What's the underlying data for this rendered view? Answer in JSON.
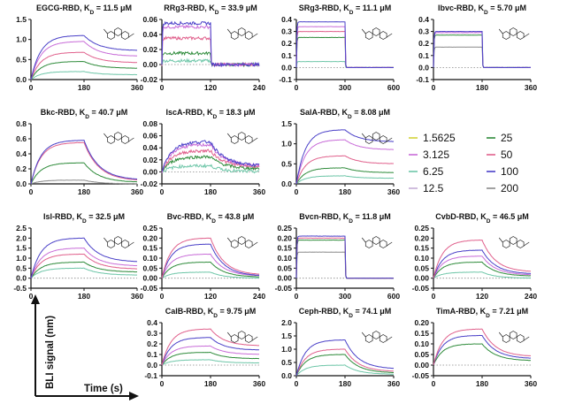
{
  "figure": {
    "y_axis_label": "BLI signal  (nm)",
    "x_axis_label": "Time (s)"
  },
  "legend": {
    "entries": [
      {
        "label": "1.5625",
        "color": "#d4d43a"
      },
      {
        "label": "3.125",
        "color": "#c86cd8"
      },
      {
        "label": "6.25",
        "color": "#6ec6a8"
      },
      {
        "label": "12.5",
        "color": "#c4aed6"
      },
      {
        "label": "25",
        "color": "#2e8b3a"
      },
      {
        "label": "50",
        "color": "#e0608c"
      },
      {
        "label": "100",
        "color": "#4a40c8"
      },
      {
        "label": "200",
        "color": "#8a8a8a"
      }
    ]
  },
  "chart_data": [
    {
      "type": "line",
      "title_main": "EGCG-RBD, K",
      "title_sub": "D",
      "title_rest": " = 11.5 μM",
      "xlim": [
        0,
        360
      ],
      "xticks": [
        "0",
        "180",
        "360"
      ],
      "xtick_values": [
        0,
        180,
        360
      ],
      "ylim": [
        0,
        1.5
      ],
      "yticks": [
        "0.0",
        "0.5",
        "1.0",
        "1.5"
      ],
      "ytick_values": [
        0,
        0.5,
        1.0,
        1.5
      ],
      "assoc_end": 180,
      "x_end": 360,
      "molecule": true,
      "series": [
        {
          "color": "#6ec6a8",
          "peak": 0.2,
          "tail": 0.12
        },
        {
          "color": "#2e8b3a",
          "peak": 0.45,
          "tail": 0.28
        },
        {
          "color": "#e0608c",
          "peak": 0.68,
          "tail": 0.42
        },
        {
          "color": "#c86cd8",
          "peak": 0.95,
          "tail": 0.58
        },
        {
          "color": "#4a40c8",
          "peak": 1.1,
          "tail": 0.72
        }
      ]
    },
    {
      "type": "line",
      "title_main": "RRg3-RBD, K",
      "title_sub": "D",
      "title_rest": " = 33.9 μM",
      "xlim": [
        0,
        240
      ],
      "xticks": [
        "0",
        "120",
        "240"
      ],
      "xtick_values": [
        0,
        120,
        240
      ],
      "ylim": [
        -0.02,
        0.06
      ],
      "yticks": [
        "-0.02",
        "0.00",
        "0.02",
        "0.04",
        "0.06"
      ],
      "ytick_values": [
        -0.02,
        0,
        0.02,
        0.04,
        0.06
      ],
      "assoc_end": 120,
      "x_end": 240,
      "molecule": true,
      "square": true,
      "noisy": true,
      "series": [
        {
          "color": "#6ec6a8",
          "peak": 0.005,
          "tail": 0.0
        },
        {
          "color": "#2e8b3a",
          "peak": 0.015,
          "tail": 0.0
        },
        {
          "color": "#e0608c",
          "peak": 0.035,
          "tail": 0.0
        },
        {
          "color": "#c86cd8",
          "peak": 0.05,
          "tail": 0.0
        },
        {
          "color": "#4a40c8",
          "peak": 0.055,
          "tail": 0.0
        }
      ]
    },
    {
      "type": "line",
      "title_main": "SRg3-RBD, K",
      "title_sub": "D",
      "title_rest": " = 11.1 μM",
      "xlim": [
        0,
        600
      ],
      "xticks": [
        "0",
        "300",
        "600"
      ],
      "xtick_values": [
        0,
        300,
        600
      ],
      "ylim": [
        -0.1,
        0.4
      ],
      "yticks": [
        "-0.1",
        "0.0",
        "0.1",
        "0.2",
        "0.3",
        "0.4"
      ],
      "ytick_values": [
        -0.1,
        0,
        0.1,
        0.2,
        0.3,
        0.4
      ],
      "assoc_end": 300,
      "x_end": 600,
      "molecule": true,
      "square": true,
      "series": [
        {
          "color": "#6ec6a8",
          "peak": 0.05,
          "tail": 0.0
        },
        {
          "color": "#2e8b3a",
          "peak": 0.25,
          "tail": 0.0
        },
        {
          "color": "#e0608c",
          "peak": 0.3,
          "tail": 0.0
        },
        {
          "color": "#c86cd8",
          "peak": 0.34,
          "tail": 0.0
        },
        {
          "color": "#4a40c8",
          "peak": 0.38,
          "tail": 0.0
        }
      ]
    },
    {
      "type": "line",
      "title_main": "Ibvc-RBD, K",
      "title_sub": "D",
      "title_rest": " = 5.70 μM",
      "xlim": [
        0,
        360
      ],
      "xticks": [
        "0",
        "180",
        "360"
      ],
      "xtick_values": [
        0,
        180,
        360
      ],
      "ylim": [
        -0.1,
        0.4
      ],
      "yticks": [
        "-0.1",
        "0.0",
        "0.1",
        "0.2",
        "0.3",
        "0.4"
      ],
      "ytick_values": [
        -0.1,
        0,
        0.1,
        0.2,
        0.3,
        0.4
      ],
      "assoc_end": 180,
      "x_end": 360,
      "molecule": true,
      "square": true,
      "series": [
        {
          "color": "#8a8a8a",
          "peak": 0.17,
          "tail": 0.0
        },
        {
          "color": "#2e8b3a",
          "peak": 0.27,
          "tail": 0.0
        },
        {
          "color": "#c86cd8",
          "peak": 0.29,
          "tail": 0.0
        },
        {
          "color": "#4a40c8",
          "peak": 0.3,
          "tail": 0.0
        }
      ]
    },
    {
      "type": "line",
      "title_main": "Bkc-RBD, K",
      "title_sub": "D",
      "title_rest": " = 40.7 μM",
      "xlim": [
        0,
        360
      ],
      "xticks": [
        "0",
        "180",
        "360"
      ],
      "xtick_values": [
        0,
        180,
        360
      ],
      "ylim": [
        0,
        0.8
      ],
      "yticks": [
        "0.0",
        "0.2",
        "0.4",
        "0.6",
        "0.8"
      ],
      "ytick_values": [
        0,
        0.2,
        0.4,
        0.6,
        0.8
      ],
      "assoc_end": 180,
      "x_end": 360,
      "molecule": true,
      "series": [
        {
          "color": "#8a8a8a",
          "peak": 0.05,
          "tail": 0.0
        },
        {
          "color": "#2e8b3a",
          "peak": 0.28,
          "tail": 0.02
        },
        {
          "color": "#e0608c",
          "peak": 0.55,
          "tail": 0.04
        },
        {
          "color": "#4a40c8",
          "peak": 0.58,
          "tail": 0.05
        }
      ]
    },
    {
      "type": "line",
      "title_main": "IscA-RBD, K",
      "title_sub": "D",
      "title_rest": " = 18.3 μM",
      "xlim": [
        0,
        360
      ],
      "xticks": [
        "0",
        "180",
        "360"
      ],
      "xtick_values": [
        0,
        180,
        360
      ],
      "ylim": [
        -0.02,
        0.08
      ],
      "yticks": [
        "-0.02",
        "0.00",
        "0.02",
        "0.04",
        "0.06",
        "0.08"
      ],
      "ytick_values": [
        -0.02,
        0,
        0.02,
        0.04,
        0.06,
        0.08
      ],
      "assoc_end": 180,
      "x_end": 360,
      "molecule": true,
      "noisy": true,
      "series": [
        {
          "color": "#6ec6a8",
          "peak": 0.01,
          "tail": 0.0
        },
        {
          "color": "#2e8b3a",
          "peak": 0.025,
          "tail": 0.005
        },
        {
          "color": "#e0608c",
          "peak": 0.035,
          "tail": 0.008
        },
        {
          "color": "#c86cd8",
          "peak": 0.045,
          "tail": 0.01
        },
        {
          "color": "#4a40c8",
          "peak": 0.05,
          "tail": 0.01
        }
      ]
    },
    {
      "type": "line",
      "title_main": "SalA-RBD, K",
      "title_sub": "D",
      "title_rest": " = 8.08 μM",
      "xlim": [
        0,
        360
      ],
      "xticks": [
        "0",
        "180",
        "360"
      ],
      "xtick_values": [
        0,
        180,
        360
      ],
      "ylim": [
        0,
        1.5
      ],
      "yticks": [
        "0.0",
        "0.5",
        "1.0",
        "1.5"
      ],
      "ytick_values": [
        0,
        0.5,
        1.0,
        1.5
      ],
      "assoc_end": 180,
      "x_end": 360,
      "molecule": true,
      "series": [
        {
          "color": "#6ec6a8",
          "peak": 0.2,
          "tail": 0.14
        },
        {
          "color": "#2e8b3a",
          "peak": 0.4,
          "tail": 0.28
        },
        {
          "color": "#e0608c",
          "peak": 0.7,
          "tail": 0.5
        },
        {
          "color": "#c86cd8",
          "peak": 1.1,
          "tail": 0.85
        },
        {
          "color": "#4a40c8",
          "peak": 1.35,
          "tail": 1.05
        }
      ]
    },
    {
      "type": "line",
      "title_main": "Isl-RBD, K",
      "title_sub": "D",
      "title_rest": " = 32.5 μM",
      "xlim": [
        0,
        360
      ],
      "xticks": [
        "0",
        "180",
        "360"
      ],
      "xtick_values": [
        0,
        180,
        360
      ],
      "ylim": [
        -0.5,
        2.5
      ],
      "yticks": [
        "-0.5",
        "0.0",
        "0.5",
        "1.0",
        "1.5",
        "2.0",
        "2.5"
      ],
      "ytick_values": [
        -0.5,
        0,
        0.5,
        1.0,
        1.5,
        2.0,
        2.5
      ],
      "assoc_end": 180,
      "x_end": 360,
      "molecule": true,
      "series": [
        {
          "color": "#6ec6a8",
          "peak": 0.5,
          "tail": 0.15
        },
        {
          "color": "#2e8b3a",
          "peak": 0.8,
          "tail": 0.3
        },
        {
          "color": "#e0608c",
          "peak": 1.2,
          "tail": 0.45
        },
        {
          "color": "#c86cd8",
          "peak": 1.5,
          "tail": 0.6
        },
        {
          "color": "#4a40c8",
          "peak": 2.0,
          "tail": 0.8
        }
      ]
    },
    {
      "type": "line",
      "title_main": "Bvc-RBD, K",
      "title_sub": "D",
      "title_rest": " = 43.8 μM",
      "xlim": [
        0,
        240
      ],
      "xticks": [
        "0",
        "120",
        "240"
      ],
      "xtick_values": [
        0,
        120,
        240
      ],
      "ylim": [
        -0.05,
        0.25
      ],
      "yticks": [
        "-0.05",
        "0.00",
        "0.05",
        "0.10",
        "0.15",
        "0.20",
        "0.25"
      ],
      "ytick_values": [
        -0.05,
        0,
        0.05,
        0.1,
        0.15,
        0.2,
        0.25
      ],
      "assoc_end": 120,
      "x_end": 240,
      "molecule": true,
      "series": [
        {
          "color": "#6ec6a8",
          "peak": 0.03,
          "tail": 0.0
        },
        {
          "color": "#2e8b3a",
          "peak": 0.08,
          "tail": 0.005
        },
        {
          "color": "#c86cd8",
          "peak": 0.12,
          "tail": 0.01
        },
        {
          "color": "#4a40c8",
          "peak": 0.17,
          "tail": 0.01
        },
        {
          "color": "#e0608c",
          "peak": 0.2,
          "tail": 0.015
        }
      ]
    },
    {
      "type": "line",
      "title_main": "Bvcn-RBD, K",
      "title_sub": "D",
      "title_rest": " = 11.8 μM",
      "xlim": [
        0,
        600
      ],
      "xticks": [
        "0",
        "300",
        "600"
      ],
      "xtick_values": [
        0,
        300,
        600
      ],
      "ylim": [
        -0.05,
        0.25
      ],
      "yticks": [
        "-0.05",
        "0.00",
        "0.05",
        "0.10",
        "0.15",
        "0.20",
        "0.25"
      ],
      "ytick_values": [
        -0.05,
        0,
        0.05,
        0.1,
        0.15,
        0.2,
        0.25
      ],
      "assoc_end": 300,
      "x_end": 600,
      "molecule": true,
      "square": true,
      "series": [
        {
          "color": "#8a8a8a",
          "peak": 0.13,
          "tail": 0.0
        },
        {
          "color": "#2e8b3a",
          "peak": 0.19,
          "tail": 0.0
        },
        {
          "color": "#e0608c",
          "peak": 0.2,
          "tail": 0.0
        },
        {
          "color": "#4a40c8",
          "peak": 0.21,
          "tail": 0.0
        }
      ]
    },
    {
      "type": "line",
      "title_main": "CvbD-RBD, K",
      "title_sub": "D",
      "title_rest": " = 46.5 μM",
      "xlim": [
        0,
        240
      ],
      "xticks": [
        "0",
        "120",
        "240"
      ],
      "xtick_values": [
        0,
        120,
        240
      ],
      "ylim": [
        -0.05,
        0.25
      ],
      "yticks": [
        "-0.05",
        "0.00",
        "0.05",
        "0.10",
        "0.15",
        "0.20",
        "0.25"
      ],
      "ytick_values": [
        -0.05,
        0,
        0.05,
        0.1,
        0.15,
        0.2,
        0.25
      ],
      "assoc_end": 120,
      "x_end": 240,
      "molecule": true,
      "series": [
        {
          "color": "#6ec6a8",
          "peak": 0.03,
          "tail": 0.0
        },
        {
          "color": "#2e8b3a",
          "peak": 0.08,
          "tail": 0.01
        },
        {
          "color": "#c86cd8",
          "peak": 0.11,
          "tail": 0.015
        },
        {
          "color": "#4a40c8",
          "peak": 0.14,
          "tail": 0.02
        },
        {
          "color": "#e0608c",
          "peak": 0.19,
          "tail": 0.03
        }
      ]
    },
    {
      "type": "line",
      "title_main": "CalB-RBD, K",
      "title_sub": "D",
      "title_rest": " = 9.75 μM",
      "xlim": [
        0,
        360
      ],
      "xticks": [
        "0",
        "180",
        "360"
      ],
      "xtick_values": [
        0,
        180,
        360
      ],
      "ylim": [
        -0.1,
        0.4
      ],
      "yticks": [
        "-0.1",
        "0.0",
        "0.1",
        "0.2",
        "0.3",
        "0.4"
      ],
      "ytick_values": [
        -0.1,
        0,
        0.1,
        0.2,
        0.3,
        0.4
      ],
      "assoc_end": 180,
      "x_end": 360,
      "molecule": true,
      "series": [
        {
          "color": "#6ec6a8",
          "peak": 0.05,
          "tail": 0.02
        },
        {
          "color": "#2e8b3a",
          "peak": 0.12,
          "tail": 0.06
        },
        {
          "color": "#c86cd8",
          "peak": 0.18,
          "tail": 0.1
        },
        {
          "color": "#4a40c8",
          "peak": 0.26,
          "tail": 0.14
        },
        {
          "color": "#e0608c",
          "peak": 0.34,
          "tail": 0.18
        }
      ]
    },
    {
      "type": "line",
      "title_main": "Ceph-RBD, K",
      "title_sub": "D",
      "title_rest": " = 74.1 μM",
      "xlim": [
        0,
        360
      ],
      "xticks": [
        "0",
        "180",
        "360"
      ],
      "xtick_values": [
        0,
        180,
        360
      ],
      "ylim": [
        0,
        2.0
      ],
      "yticks": [
        "0.0",
        "0.5",
        "1.0",
        "1.5",
        "2.0"
      ],
      "ytick_values": [
        0,
        0.5,
        1.0,
        1.5,
        2.0
      ],
      "assoc_end": 180,
      "x_end": 360,
      "molecule": true,
      "series": [
        {
          "color": "#6ec6a8",
          "peak": 0.4,
          "tail": 0.05
        },
        {
          "color": "#2e8b3a",
          "peak": 0.8,
          "tail": 0.1
        },
        {
          "color": "#e0608c",
          "peak": 1.0,
          "tail": 0.15
        },
        {
          "color": "#4a40c8",
          "peak": 1.35,
          "tail": 0.25
        }
      ]
    },
    {
      "type": "line",
      "title_main": "TimA-RBD, K",
      "title_sub": "D",
      "title_rest": " = 7.21 μM",
      "xlim": [
        0,
        360
      ],
      "xticks": [
        "0",
        "180",
        "360"
      ],
      "xtick_values": [
        0,
        180,
        360
      ],
      "ylim": [
        -0.05,
        0.2
      ],
      "yticks": [
        "-0.05",
        "0.00",
        "0.05",
        "0.10",
        "0.15",
        "0.20"
      ],
      "ytick_values": [
        -0.05,
        0,
        0.05,
        0.1,
        0.15,
        0.2
      ],
      "assoc_end": 180,
      "x_end": 360,
      "molecule": true,
      "series": [
        {
          "color": "#2e8b3a",
          "peak": 0.1,
          "tail": 0.02
        },
        {
          "color": "#4a40c8",
          "peak": 0.14,
          "tail": 0.03
        },
        {
          "color": "#e0608c",
          "peak": 0.17,
          "tail": 0.04
        }
      ]
    }
  ]
}
